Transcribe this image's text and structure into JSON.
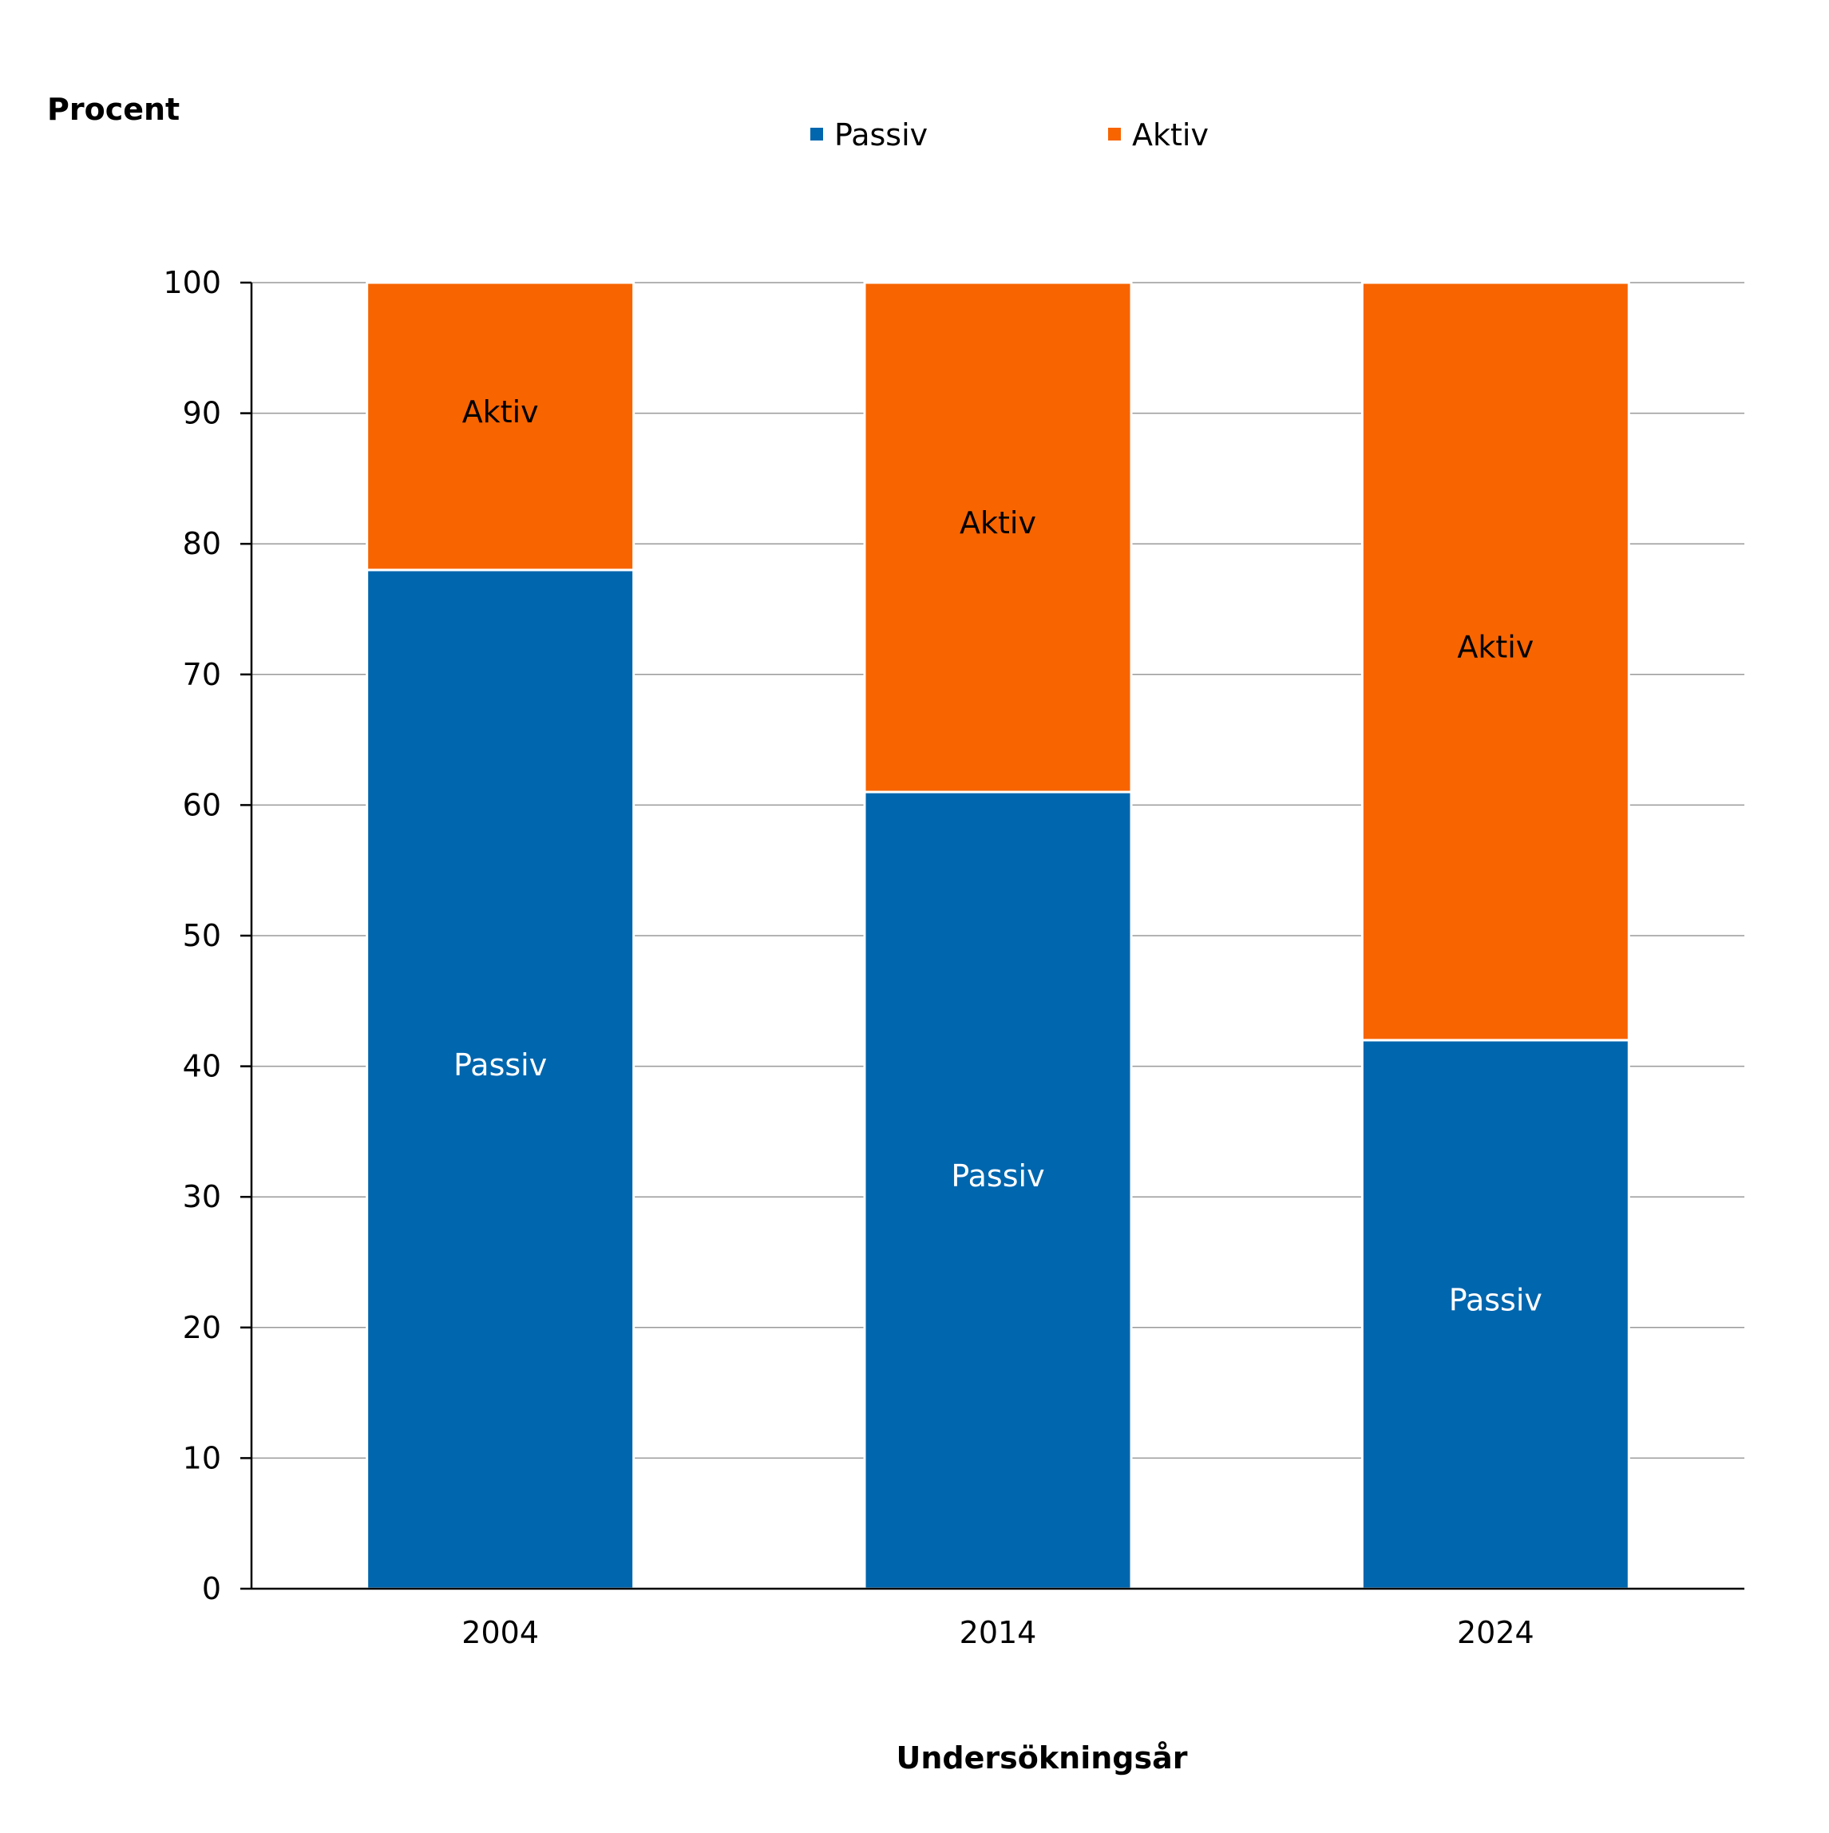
{
  "chart_data": {
    "type": "bar",
    "stacked": true,
    "ylabel": "Procent",
    "xlabel": "Undersökningsår",
    "categories": [
      "2004",
      "2014",
      "2024"
    ],
    "ylim": [
      0,
      100
    ],
    "yticks": [
      0,
      10,
      20,
      30,
      40,
      50,
      60,
      70,
      80,
      90,
      100
    ],
    "grid": true,
    "legend_position": "top",
    "series": [
      {
        "name": "Passiv",
        "color": "#0066ae",
        "label_color": "#ffffff",
        "values": [
          78,
          61,
          42
        ],
        "bar_labels": [
          "Passiv",
          "Passiv",
          "Passiv"
        ]
      },
      {
        "name": "Aktiv",
        "color": "#f76400",
        "label_color": "#000000",
        "values": [
          22,
          39,
          58
        ],
        "bar_labels": [
          "Aktiv",
          "Aktiv",
          "Aktiv"
        ]
      }
    ]
  }
}
